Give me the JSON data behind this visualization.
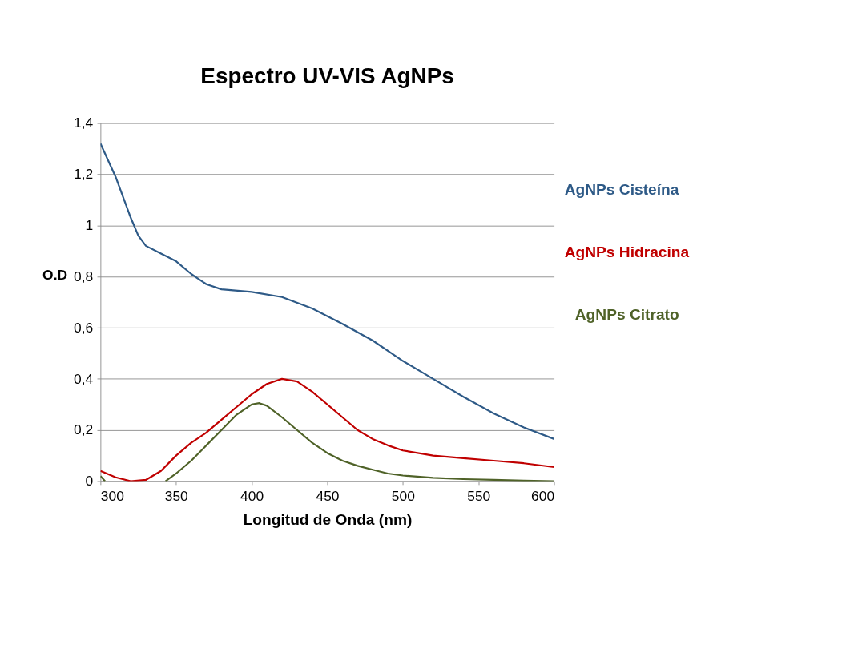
{
  "chart_data": {
    "type": "line",
    "title": "Espectro UV-VIS AgNPs",
    "xlabel": "Longitud de Onda (nm)",
    "ylabel": "O.D",
    "xlim": [
      300,
      600
    ],
    "xticks": [
      300,
      350,
      400,
      450,
      500,
      550,
      600
    ],
    "ylim": [
      0,
      1.4
    ],
    "yticks": [
      0,
      {
        "value": 0.2,
        "label": "0,2"
      },
      {
        "value": 0.4,
        "label": "0,4"
      },
      {
        "value": 0.6,
        "label": "0,6"
      },
      {
        "value": 0.8,
        "label": "0,8"
      },
      1,
      {
        "value": 1.2,
        "label": "1,2"
      },
      {
        "value": 1.4,
        "label": "1,4"
      }
    ],
    "grid": "y",
    "legend": false,
    "marker": "none",
    "line_style": "solid",
    "series": [
      {
        "name": "AgNPs Cisteína",
        "color": "#2e5a87",
        "x": [
          300,
          310,
          320,
          325,
          330,
          340,
          350,
          360,
          370,
          380,
          400,
          420,
          440,
          460,
          480,
          500,
          520,
          540,
          560,
          580,
          600
        ],
        "values": [
          1.32,
          1.19,
          1.03,
          0.96,
          0.92,
          0.89,
          0.86,
          0.81,
          0.77,
          0.75,
          0.74,
          0.72,
          0.675,
          0.615,
          0.55,
          0.47,
          0.4,
          0.33,
          0.265,
          0.21,
          0.165
        ]
      },
      {
        "name": "AgNPs Hidracina",
        "color": "#c00000",
        "x": [
          300,
          310,
          320,
          330,
          340,
          350,
          360,
          370,
          380,
          390,
          400,
          410,
          420,
          430,
          440,
          450,
          460,
          470,
          480,
          490,
          500,
          520,
          540,
          560,
          580,
          600
        ],
        "values": [
          0.04,
          0.015,
          0.0,
          0.005,
          0.04,
          0.1,
          0.15,
          0.19,
          0.24,
          0.29,
          0.34,
          0.38,
          0.4,
          0.39,
          0.35,
          0.3,
          0.25,
          0.2,
          0.165,
          0.14,
          0.12,
          0.1,
          0.09,
          0.08,
          0.07,
          0.055
        ]
      },
      {
        "name": "AgNPs Citrato",
        "color": "#4f6228",
        "x": [
          300,
          303,
          320,
          343,
          350,
          360,
          370,
          380,
          390,
          400,
          405,
          410,
          420,
          430,
          440,
          450,
          460,
          470,
          480,
          490,
          500,
          520,
          540,
          560,
          580,
          600
        ],
        "values": [
          0.02,
          0.0,
          null,
          0.0,
          0.03,
          0.08,
          0.14,
          0.2,
          0.26,
          0.3,
          0.305,
          0.295,
          0.25,
          0.2,
          0.15,
          0.11,
          0.08,
          0.06,
          0.045,
          0.03,
          0.022,
          0.013,
          0.008,
          0.005,
          0.002,
          0.0
        ]
      }
    ]
  }
}
